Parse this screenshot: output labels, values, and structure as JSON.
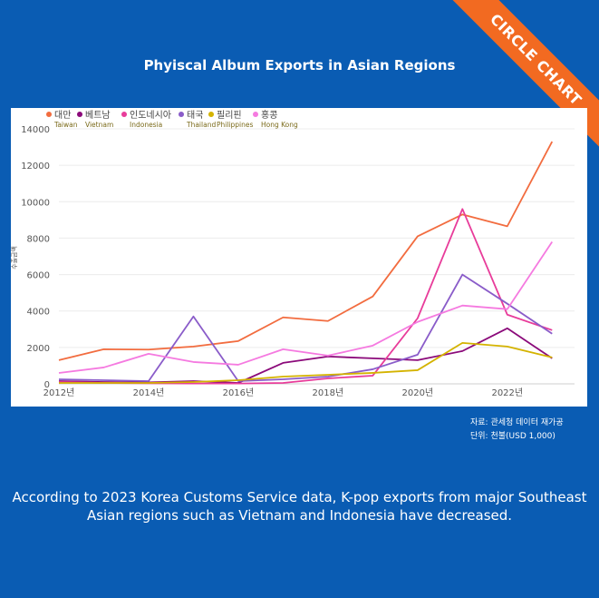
{
  "brand": {
    "ribbon": "CIRCLE CHART"
  },
  "title": "Phyiscal Album Exports in Asian Regions",
  "source": {
    "line1": "자료: 관세청 데이터 재가공",
    "line2": "단위: 천불(USD 1,000)"
  },
  "caption": {
    "line1": "According to 2023 Korea Customs Service data, K-pop exports from major Southeast",
    "line2": "Asian regions such as Vietnam and Indonesia have decreased."
  },
  "chart_data": {
    "type": "line",
    "title": "Phyiscal Album Exports in Asian Regions",
    "ylabel": "수출금액",
    "xlabel": "",
    "x": [
      2012,
      2013,
      2014,
      2015,
      2016,
      2017,
      2018,
      2019,
      2020,
      2021,
      2022,
      2023
    ],
    "xticks": [
      {
        "value": 2012,
        "label": "2012년"
      },
      {
        "value": 2014,
        "label": "2014년"
      },
      {
        "value": 2016,
        "label": "2016년"
      },
      {
        "value": 2018,
        "label": "2018년"
      },
      {
        "value": 2020,
        "label": "2020년"
      },
      {
        "value": 2022,
        "label": "2022년"
      }
    ],
    "ylim": [
      0,
      14000
    ],
    "yticks": [
      0,
      2000,
      4000,
      6000,
      8000,
      10000,
      12000,
      14000
    ],
    "grid": true,
    "legend_position": "top-left",
    "series": [
      {
        "name": "대만",
        "name_en": "Taiwan",
        "color": "#f26c3f",
        "values": [
          1300,
          1900,
          1880,
          2050,
          2350,
          3650,
          3450,
          4800,
          8100,
          9300,
          8650,
          13300
        ]
      },
      {
        "name": "베트남",
        "name_en": "Vietnam",
        "color": "#8b0a7a",
        "values": [
          150,
          100,
          80,
          150,
          50,
          1150,
          1500,
          1400,
          1300,
          1800,
          3050,
          1400
        ]
      },
      {
        "name": "인도네시아",
        "name_en": "Indonesia",
        "color": "#e83c9a",
        "values": [
          100,
          50,
          30,
          20,
          20,
          50,
          300,
          450,
          3600,
          9600,
          3800,
          2950
        ]
      },
      {
        "name": "태국",
        "name_en": "Thailand",
        "color": "#8a5cc9",
        "values": [
          250,
          200,
          150,
          3700,
          150,
          250,
          400,
          800,
          1600,
          6000,
          4400,
          2750
        ]
      },
      {
        "name": "필리핀",
        "name_en": "Philippines",
        "color": "#d4b300",
        "values": [
          50,
          50,
          50,
          100,
          200,
          400,
          500,
          600,
          750,
          2250,
          2050,
          1450
        ]
      },
      {
        "name": "홍콩",
        "name_en": "Hong Kong",
        "color": "#f57ae0",
        "values": [
          600,
          900,
          1650,
          1200,
          1050,
          1900,
          1550,
          2100,
          3400,
          4300,
          4100,
          7800
        ]
      }
    ]
  }
}
